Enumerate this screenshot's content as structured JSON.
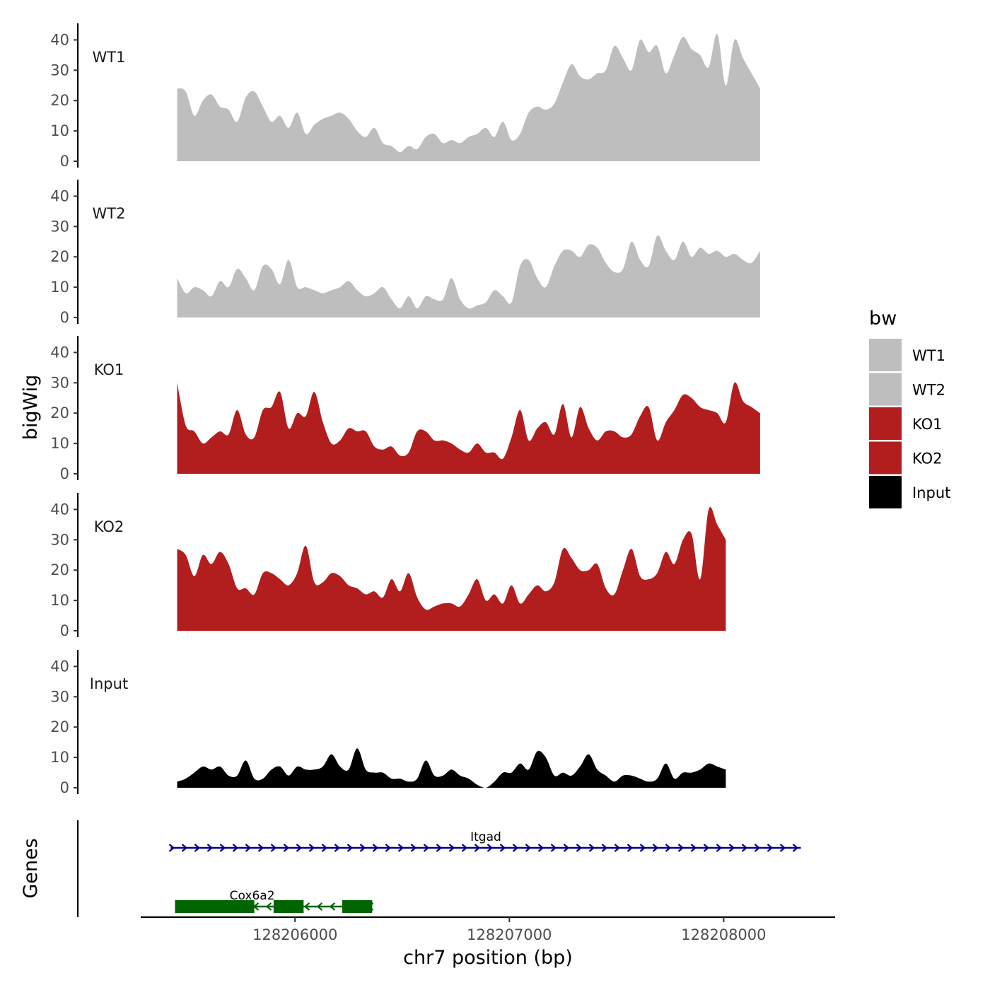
{
  "chart_data": {
    "type": "area",
    "ylabel": "bigWig",
    "xlabel": "chr7 position (bp)",
    "xlim": [
      128205280,
      128208520
    ],
    "ylim": [
      0,
      45
    ],
    "yticks": [
      0,
      10,
      20,
      30,
      40
    ],
    "xticks": [
      128206000,
      128207000,
      128208000
    ],
    "xtick_labels": [
      "128206000",
      "128207000",
      "128208000"
    ],
    "x_start": 128205450,
    "x_step": 40,
    "legend": {
      "title": "bw",
      "position": "right"
    },
    "tracks_title": "Genes",
    "series": [
      {
        "name": "WT1",
        "color": "#BEBEBE",
        "values": [
          24,
          23,
          15,
          20,
          22,
          18,
          17,
          13,
          21,
          23,
          18,
          13,
          15,
          11,
          16,
          9,
          12,
          14,
          15,
          16,
          14,
          10,
          8,
          11,
          6,
          5,
          3,
          5,
          4,
          8,
          9,
          6,
          7,
          6,
          8,
          9,
          11,
          8,
          13,
          7,
          9,
          16,
          18,
          17,
          19,
          26,
          32,
          28,
          27,
          29,
          30,
          38,
          34,
          30,
          40,
          36,
          38,
          29,
          35,
          41,
          37,
          35,
          31,
          42,
          25,
          40,
          34,
          29,
          24
        ]
      },
      {
        "name": "WT2",
        "color": "#BEBEBE",
        "values": [
          13,
          8,
          10,
          9,
          7,
          12,
          10,
          16,
          13,
          9,
          17,
          16,
          11,
          19,
          10,
          10,
          9,
          8,
          9,
          10,
          12,
          9,
          7,
          8,
          10,
          6,
          3,
          7,
          3,
          7,
          6,
          6,
          13,
          6,
          3,
          4,
          5,
          9,
          7,
          5,
          17,
          19,
          13,
          10,
          17,
          22,
          22,
          20,
          24,
          23,
          18,
          15,
          16,
          25,
          19,
          17,
          27,
          22,
          19,
          25,
          20,
          23,
          21,
          22,
          20,
          21,
          19,
          18,
          22
        ]
      },
      {
        "name": "KO1",
        "color": "#B21E1E",
        "values": [
          30,
          16,
          14,
          10,
          12,
          14,
          13,
          21,
          13,
          12,
          21,
          22,
          27,
          15,
          20,
          19,
          27,
          17,
          10,
          11,
          15,
          14,
          14,
          9,
          8,
          9,
          6,
          7,
          14,
          14,
          11,
          11,
          10,
          8,
          7,
          10,
          7,
          7,
          5,
          12,
          21,
          11,
          15,
          17,
          13,
          23,
          12,
          22,
          15,
          11,
          14,
          14,
          12,
          13,
          19,
          22,
          11,
          17,
          21,
          26,
          25,
          22,
          21,
          20,
          17,
          30,
          24,
          22,
          20
        ]
      },
      {
        "name": "KO2",
        "color": "#B21E1E",
        "values": [
          27,
          25,
          18,
          25,
          22,
          26,
          22,
          14,
          14,
          12,
          19,
          19,
          17,
          15,
          19,
          28,
          16,
          16,
          19,
          18,
          15,
          14,
          12,
          13,
          11,
          17,
          13,
          19,
          11,
          7,
          8,
          9,
          9,
          8,
          12,
          17,
          10,
          12,
          9,
          15,
          9,
          12,
          15,
          13,
          16,
          27,
          24,
          20,
          20,
          22,
          14,
          12,
          20,
          27,
          18,
          17,
          19,
          26,
          22,
          30,
          32,
          17,
          40,
          35,
          30
        ]
      },
      {
        "name": "Input",
        "color": "#000000",
        "values": [
          2,
          3,
          5,
          7,
          6,
          7,
          4,
          4,
          9,
          3,
          3,
          6,
          7,
          4,
          7,
          6,
          6,
          7,
          11,
          7,
          6,
          13,
          6,
          5,
          5,
          3,
          3,
          2,
          3,
          9,
          4,
          4,
          6,
          4,
          3,
          1,
          0,
          2,
          5,
          5,
          8,
          6,
          12,
          10,
          4,
          5,
          4,
          7,
          11,
          6,
          4,
          2,
          4,
          4,
          3,
          2,
          3,
          8,
          3,
          5,
          5,
          6,
          8,
          7,
          6
        ]
      }
    ],
    "genes": [
      {
        "name": "Itgad",
        "start": 128205420,
        "end": 128208360,
        "strand": "+",
        "color": "#00008B",
        "exons": []
      },
      {
        "name": "Cox6a2",
        "start": 128205440,
        "end": 128206360,
        "strand": "-",
        "color": "#006400",
        "exons": [
          [
            128205440,
            128205810
          ],
          [
            128205900,
            128206040
          ],
          [
            128206220,
            128206360
          ]
        ]
      }
    ]
  }
}
